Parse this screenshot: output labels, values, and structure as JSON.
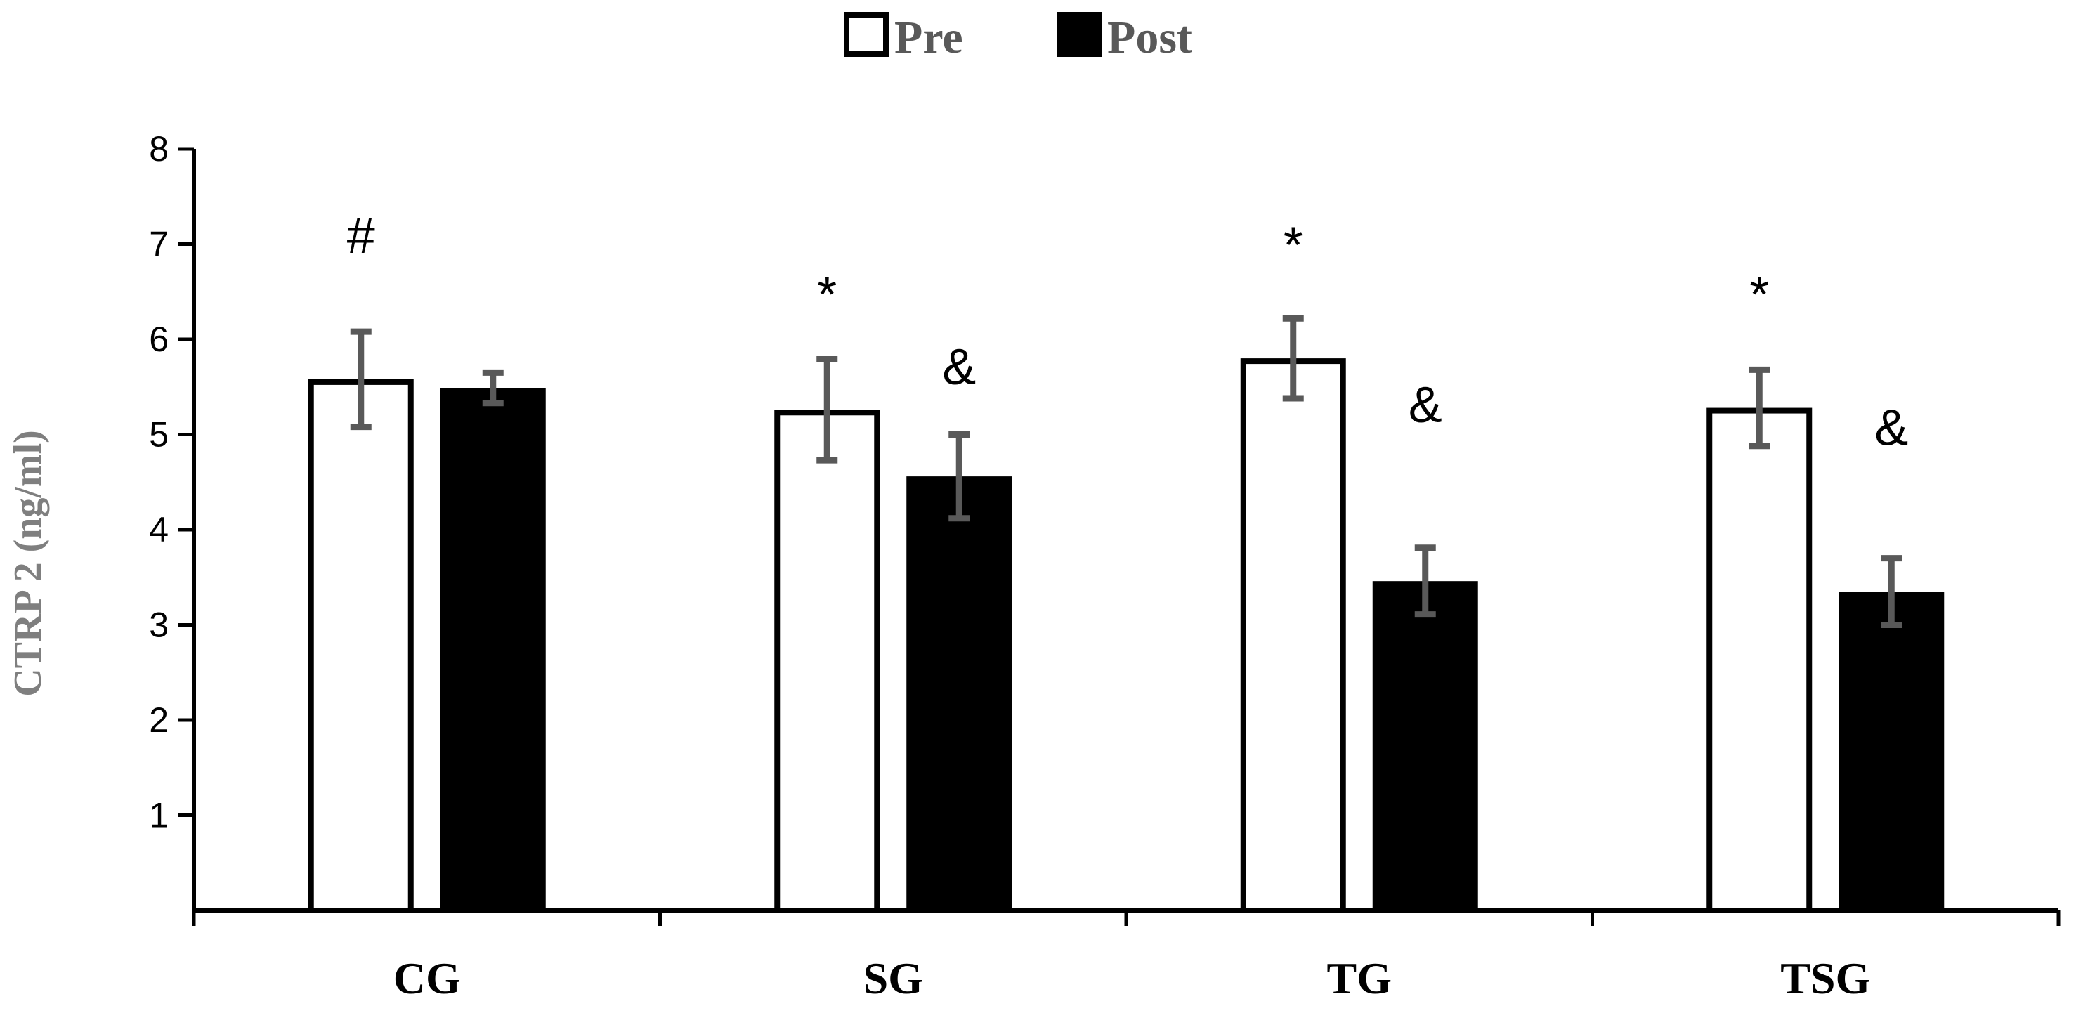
{
  "chart_data": {
    "type": "bar",
    "categories": [
      "CG",
      "SG",
      "TG",
      "TSG"
    ],
    "series": [
      {
        "name": "Pre",
        "values": [
          5.58,
          5.26,
          5.8,
          5.28
        ],
        "error": [
          0.5,
          0.53,
          0.42,
          0.4
        ],
        "fill": "#ffffff",
        "stroke": "#000000"
      },
      {
        "name": "Post",
        "values": [
          5.49,
          4.56,
          3.46,
          3.35
        ],
        "error": [
          0.16,
          0.44,
          0.35,
          0.35
        ],
        "fill": "#000000",
        "stroke": "#000000"
      }
    ],
    "annotations": [
      {
        "text": "#",
        "category": "CG",
        "series": "Pre",
        "y": 7.1
      },
      {
        "text": "*",
        "category": "SG",
        "series": "Pre",
        "y": 6.48
      },
      {
        "text": "&",
        "category": "SG",
        "series": "Post",
        "y": 5.72
      },
      {
        "text": "*",
        "category": "TG",
        "series": "Pre",
        "y": 7.0
      },
      {
        "text": "&",
        "category": "TG",
        "series": "Post",
        "y": 5.32
      },
      {
        "text": "*",
        "category": "TSG",
        "series": "Pre",
        "y": 6.48
      },
      {
        "text": "&",
        "category": "TSG",
        "series": "Post",
        "y": 5.08
      }
    ],
    "title": "",
    "xlabel": "",
    "ylabel": "CTRP 2  (ng/ml)",
    "ylim": [
      0,
      8
    ],
    "yticks": [
      1,
      2,
      3,
      4,
      5,
      6,
      7,
      8
    ],
    "grid": false,
    "legend_position": "top-center",
    "error_bar_color": "#595959",
    "ylabel_color": "#7f7f7f",
    "legend_text_color": "#595959"
  }
}
